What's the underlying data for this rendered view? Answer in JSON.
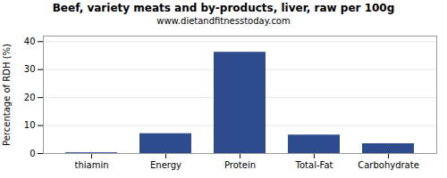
{
  "chart_data": {
    "type": "bar",
    "title": "Beef, variety meats and by-products, liver, raw per 100g",
    "subtitle": "www.dietandfitnesstoday.com",
    "categories": [
      "thiamin",
      "Energy",
      "Protein",
      "Total-Fat",
      "Carbohydrate"
    ],
    "values": [
      0.27,
      7.1,
      36.2,
      6.6,
      3.5
    ],
    "color": "#2e4b8e",
    "ylabel": "Percentage of RDH (%)",
    "ylim": [
      0,
      42
    ],
    "yticks": [
      0,
      10,
      20,
      30,
      40
    ],
    "grid": true
  }
}
